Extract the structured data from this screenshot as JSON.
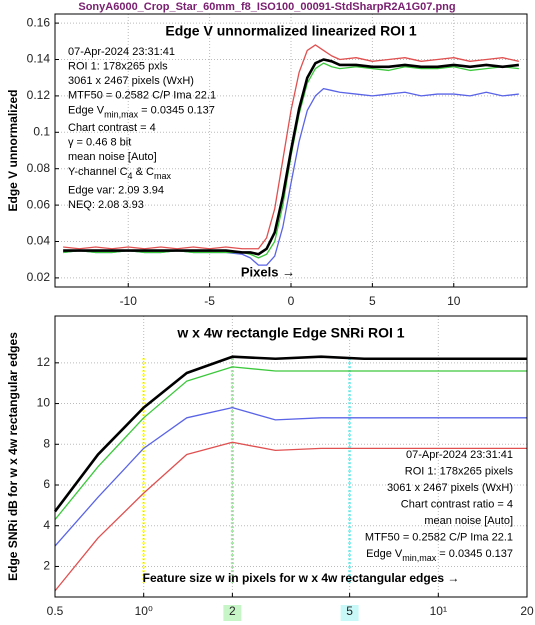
{
  "header": {
    "title": "SonyA6000_Crop_Star_60mm_f8_ISO100_00091-StdSharpR2A1G07.png"
  },
  "chart_data": [
    {
      "type": "line",
      "title": "Edge V unnormalized linearized  ROI 1",
      "y_label": "Edge V unnormalized",
      "x_label": "Pixels →",
      "x": [
        -14,
        -13,
        -12,
        -11,
        -10,
        -9,
        -8,
        -7,
        -6,
        -5,
        -4,
        -3,
        -2.5,
        -2,
        -1.5,
        -1,
        -0.5,
        0,
        0.5,
        1,
        1.5,
        2,
        2.5,
        3,
        4,
        5,
        6,
        7,
        8,
        9,
        10,
        11,
        12,
        13,
        14
      ],
      "series": [
        {
          "color": "#e05050",
          "width": 1.3,
          "values": [
            0.037,
            0.036,
            0.037,
            0.036,
            0.037,
            0.036,
            0.037,
            0.036,
            0.037,
            0.036,
            0.037,
            0.036,
            0.036,
            0.036,
            0.042,
            0.058,
            0.085,
            0.112,
            0.133,
            0.145,
            0.148,
            0.145,
            0.142,
            0.14,
            0.141,
            0.139,
            0.14,
            0.141,
            0.139,
            0.14,
            0.141,
            0.139,
            0.14,
            0.141,
            0.139
          ]
        },
        {
          "color": "#5a64e6",
          "width": 1.3,
          "values": [
            0.034,
            0.035,
            0.034,
            0.034,
            0.035,
            0.034,
            0.034,
            0.035,
            0.034,
            0.034,
            0.034,
            0.033,
            0.031,
            0.027,
            0.027,
            0.032,
            0.048,
            0.072,
            0.095,
            0.112,
            0.12,
            0.124,
            0.123,
            0.122,
            0.121,
            0.12,
            0.121,
            0.122,
            0.12,
            0.121,
            0.121,
            0.12,
            0.122,
            0.12,
            0.121
          ]
        },
        {
          "color": "#3cc83c",
          "width": 1.3,
          "values": [
            0.034,
            0.035,
            0.034,
            0.034,
            0.035,
            0.034,
            0.034,
            0.035,
            0.034,
            0.034,
            0.034,
            0.034,
            0.033,
            0.031,
            0.033,
            0.04,
            0.06,
            0.087,
            0.11,
            0.127,
            0.135,
            0.138,
            0.136,
            0.135,
            0.136,
            0.135,
            0.134,
            0.136,
            0.135,
            0.135,
            0.136,
            0.134,
            0.135,
            0.136,
            0.135
          ]
        },
        {
          "color": "#000000",
          "width": 2.6,
          "values": [
            0.035,
            0.035,
            0.035,
            0.035,
            0.035,
            0.035,
            0.035,
            0.035,
            0.035,
            0.035,
            0.035,
            0.034,
            0.034,
            0.033,
            0.036,
            0.045,
            0.065,
            0.09,
            0.113,
            0.13,
            0.138,
            0.14,
            0.139,
            0.137,
            0.137,
            0.136,
            0.136,
            0.137,
            0.136,
            0.136,
            0.137,
            0.136,
            0.137,
            0.136,
            0.137
          ]
        }
      ],
      "xlim": [
        -14.5,
        14.5
      ],
      "ylim": [
        0.015,
        0.165
      ],
      "xticks": [
        -10,
        -5,
        0,
        5,
        10
      ],
      "yticks": [
        0.02,
        0.04,
        0.06,
        0.08,
        0.1,
        0.12,
        0.14,
        0.16
      ],
      "grid": true,
      "annotation": {
        "align": "left",
        "lines": [
          "07-Apr-2024 23:31:41",
          "ROI 1:  178x265 pxls",
          "3061 x 2467 pixels (WxH)",
          "MTF50 = 0.2582 C/P  Ima 22.1",
          [
            "Edge V",
            "min,max",
            " = 0.0345 0.137"
          ],
          "Chart contrast = 4",
          "γ = 0.46   8 bit",
          "mean noise  [Auto]",
          [
            "Y-channel C",
            "4",
            " & C",
            "max"
          ],
          "Edge var:  2.09  3.94",
          "NEQ:      2.08  3.93"
        ]
      }
    },
    {
      "type": "line",
      "title": "w x 4w rectangle Edge SNRi   ROI 1",
      "y_label": "Edge SNRi dB for w x 4w rectangular edges",
      "x_label": "Feature size w in pixels for w x 4w rectangular edges  →",
      "log_x": true,
      "x": [
        0.5,
        0.7,
        1,
        1.4,
        2,
        2.8,
        4,
        5.6,
        8,
        20
      ],
      "series": [
        {
          "color": "#e05050",
          "width": 1.3,
          "values": [
            0.8,
            3.4,
            5.6,
            7.5,
            8.1,
            7.7,
            7.8,
            7.8,
            7.8,
            7.8
          ]
        },
        {
          "color": "#5a64e6",
          "width": 1.3,
          "values": [
            3.0,
            5.4,
            7.8,
            9.3,
            9.8,
            9.2,
            9.3,
            9.3,
            9.3,
            9.3
          ]
        },
        {
          "color": "#3cc83c",
          "width": 1.3,
          "values": [
            4.3,
            6.9,
            9.3,
            11.1,
            11.8,
            11.6,
            11.6,
            11.6,
            11.6,
            11.6
          ]
        },
        {
          "color": "#000000",
          "width": 2.6,
          "values": [
            4.7,
            7.5,
            9.8,
            11.5,
            12.3,
            12.2,
            12.3,
            12.2,
            12.2,
            12.2
          ]
        }
      ],
      "xlim": [
        0.5,
        20
      ],
      "ylim": [
        0.5,
        14.3
      ],
      "xticks": [
        0.5,
        {
          "value": 1,
          "label": "10⁰"
        },
        2,
        5,
        {
          "value": 10,
          "label": "10¹"
        },
        20
      ],
      "yticks": [
        2,
        4,
        6,
        8,
        10,
        12
      ],
      "grid": true,
      "highlights": [
        {
          "x": 1,
          "color": "#ffff55",
          "tick_bg": null
        },
        {
          "x": 2,
          "color": "#99ee99",
          "tick_bg": "#c8f5c8"
        },
        {
          "x": 5,
          "color": "#88eeee",
          "tick_bg": "#c8f8f8"
        }
      ],
      "annotation": {
        "align": "right",
        "lines": [
          "07-Apr-2024 23:31:41",
          "ROI 1:  178x265 pixels",
          "3061 x 2467 pixels (WxH)",
          "Chart contrast ratio = 4",
          "mean noise  [Auto]",
          "MTF50 = 0.2582 C/P  Ima 22.1",
          [
            "Edge V",
            "min,max",
            " = 0.0345 0.137"
          ]
        ]
      }
    }
  ]
}
